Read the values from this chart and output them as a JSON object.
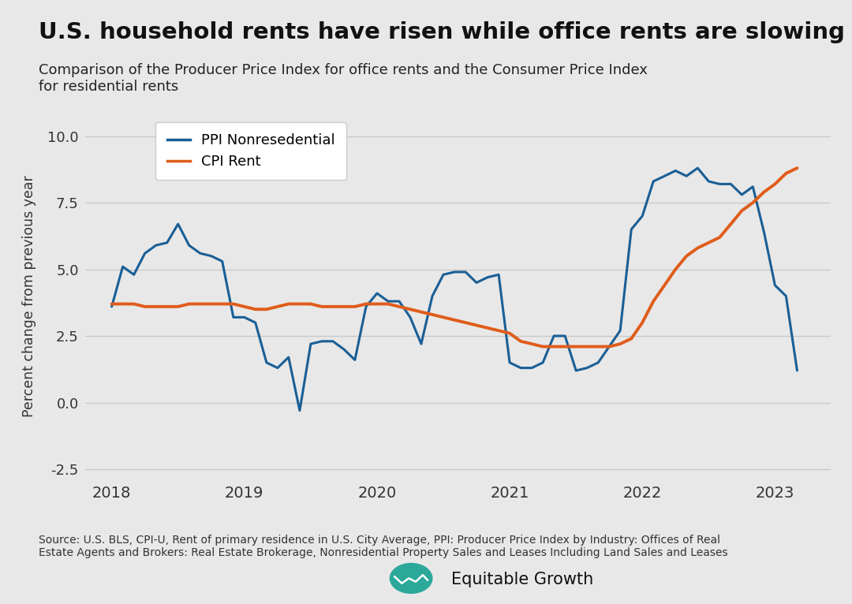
{
  "title": "U.S. household rents have risen while office rents are slowing",
  "subtitle": "Comparison of the Producer Price Index for office rents and the Consumer Price Index\nfor residential rents",
  "ylabel": "Percent change from previous year",
  "source_text": "Source: U.S. BLS, CPI-U, Rent of primary residence in U.S. City Average, PPI: Producer Price Index by Industry: Offices of Real\nEstate Agents and Brokers: Real Estate Brokerage, Nonresidential Property Sales and Leases Including Land Sales and Leases",
  "background_color": "#e8e8e8",
  "ppi_color": "#1a5f96",
  "cpi_color": "#e05c1a",
  "legend_label_ppi": "PPI Nonresedential",
  "legend_label_cpi": "CPI Rent",
  "ylim": [
    -2.8,
    10.8
  ],
  "yticks": [
    -2.5,
    0.0,
    2.5,
    5.0,
    7.5,
    10.0
  ],
  "ppi_x": [
    2018.0,
    2018.083,
    2018.167,
    2018.25,
    2018.333,
    2018.417,
    2018.5,
    2018.583,
    2018.667,
    2018.75,
    2018.833,
    2018.917,
    2019.0,
    2019.083,
    2019.167,
    2019.25,
    2019.333,
    2019.417,
    2019.5,
    2019.583,
    2019.667,
    2019.75,
    2019.833,
    2019.917,
    2020.0,
    2020.083,
    2020.167,
    2020.25,
    2020.333,
    2020.417,
    2020.5,
    2020.583,
    2020.667,
    2020.75,
    2020.833,
    2020.917,
    2021.0,
    2021.083,
    2021.167,
    2021.25,
    2021.333,
    2021.417,
    2021.5,
    2021.583,
    2021.667,
    2021.75,
    2021.833,
    2021.917,
    2022.0,
    2022.083,
    2022.167,
    2022.25,
    2022.333,
    2022.417,
    2022.5,
    2022.583,
    2022.667,
    2022.75,
    2022.833,
    2022.917,
    2023.0,
    2023.083,
    2023.167
  ],
  "ppi_y": [
    3.6,
    5.1,
    4.8,
    5.6,
    5.9,
    6.0,
    6.7,
    5.9,
    5.6,
    5.5,
    5.3,
    3.2,
    3.2,
    3.0,
    1.5,
    1.3,
    1.7,
    -0.3,
    2.2,
    2.3,
    2.3,
    2.0,
    1.6,
    3.6,
    4.1,
    3.8,
    3.8,
    3.2,
    2.2,
    4.0,
    4.8,
    4.9,
    4.9,
    4.5,
    4.7,
    4.8,
    1.5,
    1.3,
    1.3,
    1.5,
    2.5,
    2.5,
    1.2,
    1.3,
    1.5,
    2.1,
    2.7,
    6.5,
    7.0,
    8.3,
    8.5,
    8.7,
    8.5,
    8.8,
    8.3,
    8.2,
    8.2,
    7.8,
    8.1,
    6.4,
    4.4,
    4.0,
    1.2
  ],
  "cpi_x": [
    2018.0,
    2018.083,
    2018.167,
    2018.25,
    2018.333,
    2018.417,
    2018.5,
    2018.583,
    2018.667,
    2018.75,
    2018.833,
    2018.917,
    2019.0,
    2019.083,
    2019.167,
    2019.25,
    2019.333,
    2019.417,
    2019.5,
    2019.583,
    2019.667,
    2019.75,
    2019.833,
    2019.917,
    2020.0,
    2020.083,
    2020.167,
    2020.25,
    2020.333,
    2020.417,
    2020.5,
    2020.583,
    2020.667,
    2020.75,
    2020.833,
    2020.917,
    2021.0,
    2021.083,
    2021.167,
    2021.25,
    2021.333,
    2021.417,
    2021.5,
    2021.583,
    2021.667,
    2021.75,
    2021.833,
    2021.917,
    2022.0,
    2022.083,
    2022.167,
    2022.25,
    2022.333,
    2022.417,
    2022.5,
    2022.583,
    2022.667,
    2022.75,
    2022.833,
    2022.917,
    2023.0,
    2023.083,
    2023.167
  ],
  "cpi_y": [
    3.7,
    3.7,
    3.7,
    3.6,
    3.6,
    3.6,
    3.6,
    3.7,
    3.7,
    3.7,
    3.7,
    3.7,
    3.6,
    3.5,
    3.5,
    3.6,
    3.7,
    3.7,
    3.7,
    3.6,
    3.6,
    3.6,
    3.6,
    3.7,
    3.7,
    3.7,
    3.6,
    3.5,
    3.4,
    3.3,
    3.2,
    3.1,
    3.0,
    2.9,
    2.8,
    2.7,
    2.6,
    2.3,
    2.2,
    2.1,
    2.1,
    2.1,
    2.1,
    2.1,
    2.1,
    2.1,
    2.2,
    2.4,
    3.0,
    3.8,
    4.4,
    5.0,
    5.5,
    5.8,
    6.0,
    6.2,
    6.7,
    7.2,
    7.5,
    7.9,
    8.2,
    8.6,
    8.8
  ]
}
